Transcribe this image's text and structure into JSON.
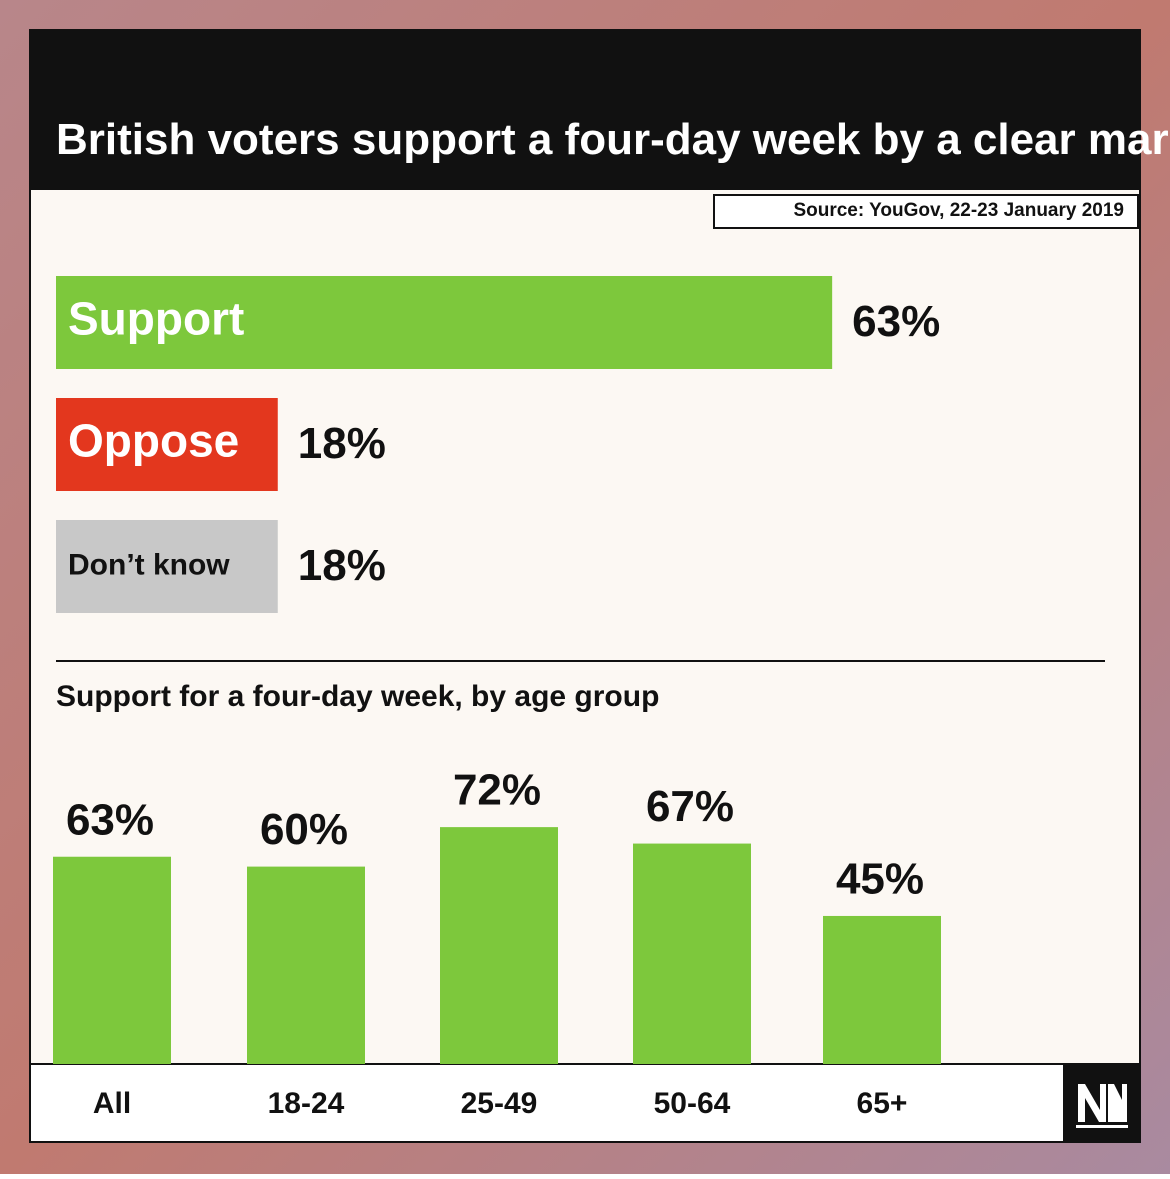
{
  "title": "British voters support a four-day week by a clear margin, say opinion polls.",
  "source": "Source: YouGov,  22-23 January 2019",
  "chart_data": [
    {
      "type": "hbar",
      "categories": [
        "Support",
        "Oppose",
        "Don’t know"
      ],
      "values": [
        63,
        18,
        18
      ],
      "value_labels": [
        "63%",
        "18%",
        "18%"
      ],
      "colors": [
        "#7dc83c",
        "#e3371e",
        "#c8c8c8"
      ],
      "label_colors": [
        "#ffffff",
        "#ffffff",
        "#111111"
      ]
    },
    {
      "type": "bar",
      "title": "Support for a four-day week, by age group",
      "categories": [
        "All",
        "18-24",
        "25-49",
        "50-64",
        "65+"
      ],
      "values": [
        63,
        60,
        72,
        67,
        45
      ],
      "value_labels": [
        "63%",
        "60%",
        "72%",
        "67%",
        "45%"
      ],
      "color": "#7dc83c"
    }
  ]
}
